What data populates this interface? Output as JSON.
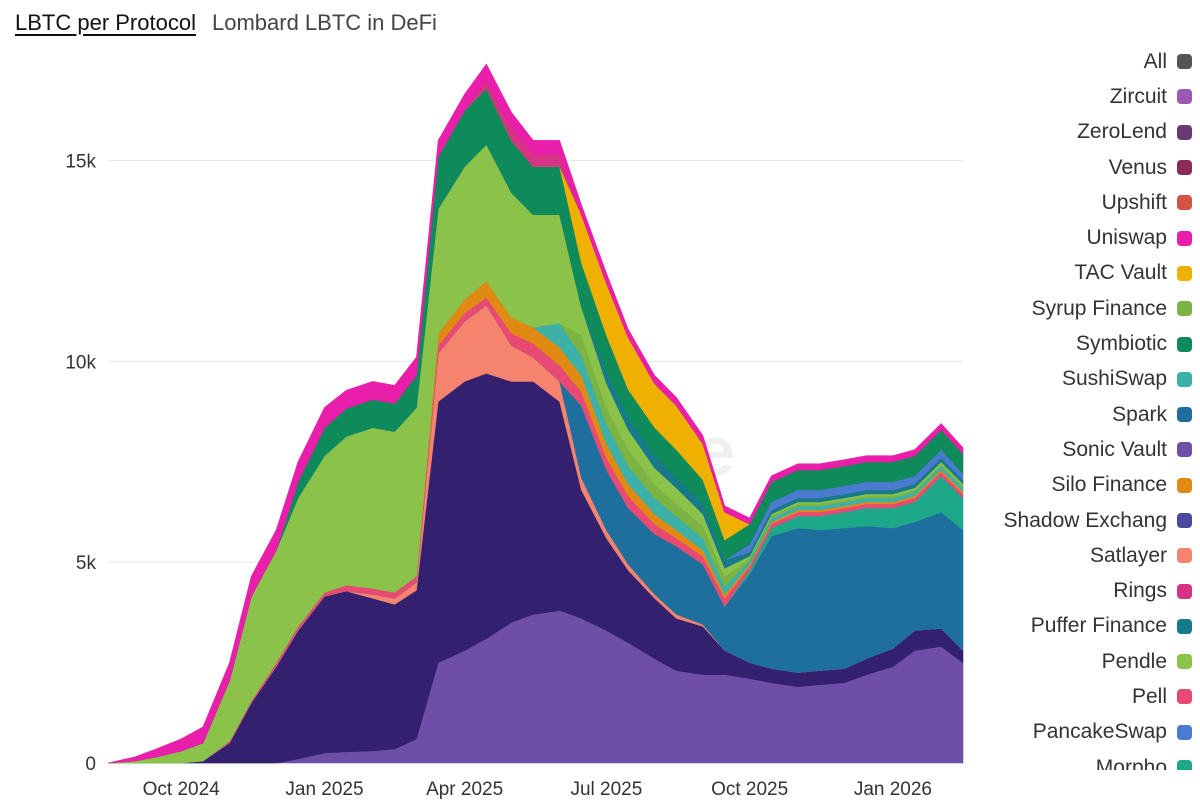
{
  "header": {
    "title": "LBTC per Protocol",
    "subtitle": "Lombard LBTC in DeFi"
  },
  "watermark": "Dune",
  "colors": {
    "background": "#ffffff",
    "grid": "#e8e8e8"
  },
  "legend": [
    {
      "label": "All",
      "color": "#555555"
    },
    {
      "label": "Zircuit",
      "color": "#9b59b6"
    },
    {
      "label": "ZeroLend",
      "color": "#6a3b73"
    },
    {
      "label": "Venus",
      "color": "#8a2b5a"
    },
    {
      "label": "Upshift",
      "color": "#d35441"
    },
    {
      "label": "Uniswap",
      "color": "#e91eaa"
    },
    {
      "label": "TAC Vault",
      "color": "#f0b000"
    },
    {
      "label": "Syrup Finance",
      "color": "#7cb342"
    },
    {
      "label": "Symbiotic",
      "color": "#0f8a5a"
    },
    {
      "label": "SushiSwap",
      "color": "#3db0a8"
    },
    {
      "label": "Spark",
      "color": "#1f6f9e"
    },
    {
      "label": "Sonic Vault",
      "color": "#6e4ea6"
    },
    {
      "label": "Silo Finance",
      "color": "#e08a14"
    },
    {
      "label": "Shadow Exchang",
      "color": "#4b4aa0"
    },
    {
      "label": "Satlayer",
      "color": "#f5836d"
    },
    {
      "label": "Rings",
      "color": "#d63384"
    },
    {
      "label": "Puffer Finance",
      "color": "#177a8a"
    },
    {
      "label": "Pendle",
      "color": "#8bc34a"
    },
    {
      "label": "Pell",
      "color": "#e84a74"
    },
    {
      "label": "PancakeSwap",
      "color": "#4a7bd0"
    },
    {
      "label": "Morpho",
      "color": "#1ea88a"
    }
  ],
  "chart_data": {
    "type": "area",
    "stacked": true,
    "title": "LBTC per Protocol",
    "subtitle": "Lombard LBTC in DeFi",
    "xlabel": "",
    "ylabel": "",
    "ylim": [
      0,
      18000
    ],
    "yticks": [
      0,
      5000,
      10000,
      15000
    ],
    "ytick_labels": [
      "0",
      "5k",
      "10k",
      "15k"
    ],
    "xticks": [
      "2024-10",
      "2025-01",
      "2025-04",
      "2025-07",
      "2025-10",
      "2026-01"
    ],
    "xtick_labels": [
      "Oct 2024",
      "Jan 2025",
      "Apr 2025",
      "Jul 2025",
      "Oct 2025",
      "Jan 2026"
    ],
    "x": [
      "2024-08-15",
      "2024-09-01",
      "2024-09-15",
      "2024-10-01",
      "2024-10-15",
      "2024-11-01",
      "2024-11-15",
      "2024-12-01",
      "2024-12-15",
      "2025-01-01",
      "2025-01-15",
      "2025-02-01",
      "2025-02-15",
      "2025-03-01",
      "2025-03-15",
      "2025-04-01",
      "2025-04-15",
      "2025-05-01",
      "2025-05-15",
      "2025-06-01",
      "2025-06-15",
      "2025-07-01",
      "2025-07-15",
      "2025-08-01",
      "2025-08-15",
      "2025-09-01",
      "2025-09-15",
      "2025-10-01",
      "2025-10-15",
      "2025-11-01",
      "2025-11-15",
      "2025-12-01",
      "2025-12-15",
      "2026-01-01",
      "2026-01-15",
      "2026-02-01",
      "2026-02-15"
    ],
    "series": [
      {
        "name": "Sonic Vault",
        "color": "#6e4ea6",
        "values": [
          0,
          0,
          0,
          0,
          0,
          0,
          0,
          0,
          100,
          250,
          280,
          300,
          350,
          600,
          2500,
          2800,
          3100,
          3500,
          3700,
          3800,
          3600,
          3300,
          3000,
          2600,
          2300,
          2200,
          2200,
          2100,
          2000,
          1900,
          1950,
          2000,
          2200,
          2400,
          2800,
          2900,
          2500
        ]
      },
      {
        "name": "Shadow Exchang",
        "color": "#33206e",
        "values": [
          0,
          0,
          0,
          0,
          50,
          500,
          1500,
          2400,
          3200,
          3900,
          4000,
          3800,
          3600,
          3700,
          6500,
          6700,
          6600,
          6000,
          5800,
          5200,
          3200,
          2300,
          1800,
          1500,
          1300,
          1200,
          600,
          400,
          350,
          350,
          350,
          350,
          400,
          450,
          500,
          450,
          300
        ]
      },
      {
        "name": "Satlayer",
        "color": "#f5836d",
        "values": [
          0,
          0,
          0,
          0,
          0,
          0,
          0,
          0,
          0,
          0,
          0,
          100,
          150,
          200,
          1200,
          1500,
          1700,
          900,
          600,
          500,
          300,
          200,
          150,
          100,
          100,
          50,
          0,
          0,
          0,
          0,
          0,
          0,
          0,
          0,
          0,
          0,
          0
        ]
      },
      {
        "name": "Spark",
        "color": "#1f6f9e",
        "values": [
          0,
          0,
          0,
          0,
          0,
          0,
          0,
          0,
          0,
          0,
          0,
          0,
          0,
          0,
          0,
          0,
          0,
          0,
          0,
          0,
          1800,
          1500,
          1400,
          1500,
          1700,
          1500,
          1100,
          2200,
          3300,
          3600,
          3500,
          3500,
          3300,
          3000,
          2700,
          2900,
          3000
        ]
      },
      {
        "name": "Morpho",
        "color": "#1ea88a",
        "values": [
          0,
          0,
          0,
          0,
          0,
          0,
          0,
          0,
          0,
          0,
          0,
          0,
          0,
          0,
          0,
          0,
          0,
          0,
          0,
          0,
          0,
          0,
          0,
          0,
          0,
          0,
          0,
          100,
          200,
          300,
          350,
          400,
          450,
          500,
          500,
          900,
          800
        ]
      },
      {
        "name": "Pell",
        "color": "#e84a74",
        "values": [
          0,
          0,
          0,
          0,
          0,
          50,
          50,
          100,
          100,
          100,
          150,
          150,
          150,
          150,
          200,
          200,
          200,
          300,
          350,
          400,
          350,
          300,
          300,
          250,
          200,
          200,
          200,
          100,
          100,
          100,
          100,
          100,
          100,
          100,
          100,
          100,
          100
        ]
      },
      {
        "name": "Silo Finance",
        "color": "#e08a14",
        "values": [
          0,
          0,
          0,
          0,
          0,
          0,
          0,
          0,
          0,
          0,
          0,
          0,
          0,
          0,
          300,
          350,
          400,
          400,
          400,
          450,
          400,
          350,
          300,
          250,
          200,
          150,
          100,
          50,
          50,
          50,
          50,
          50,
          50,
          50,
          50,
          50,
          50
        ]
      },
      {
        "name": "SushiSwap",
        "color": "#3db0a8",
        "values": [
          0,
          0,
          0,
          0,
          0,
          0,
          0,
          0,
          0,
          0,
          0,
          0,
          0,
          0,
          0,
          0,
          0,
          0,
          0,
          600,
          500,
          500,
          450,
          400,
          350,
          300,
          200,
          100,
          100,
          100,
          100,
          100,
          100,
          100,
          100,
          100,
          100
        ]
      },
      {
        "name": "Syrup Finance",
        "color": "#7cb342",
        "values": [
          0,
          0,
          0,
          0,
          0,
          0,
          0,
          0,
          0,
          0,
          0,
          0,
          0,
          0,
          0,
          0,
          0,
          0,
          0,
          0,
          500,
          400,
          400,
          350,
          300,
          300,
          250,
          50,
          50,
          50,
          50,
          50,
          50,
          50,
          50,
          50,
          50
        ]
      },
      {
        "name": "Pendle",
        "color": "#8bc34a",
        "values": [
          0,
          50,
          150,
          300,
          450,
          1500,
          2600,
          2800,
          3200,
          3400,
          3700,
          4000,
          4000,
          4200,
          3100,
          3300,
          3400,
          3100,
          2800,
          2700,
          700,
          600,
          500,
          400,
          400,
          300,
          200,
          50,
          50,
          50,
          50,
          50,
          50,
          50,
          50,
          50,
          50
        ]
      },
      {
        "name": "Puffer Finance",
        "color": "#177a8a",
        "values": [
          0,
          0,
          0,
          0,
          0,
          0,
          0,
          0,
          0,
          0,
          0,
          0,
          0,
          0,
          0,
          0,
          0,
          0,
          0,
          0,
          0,
          300,
          300,
          300,
          250,
          250,
          200,
          100,
          100,
          100,
          100,
          100,
          100,
          100,
          100,
          100,
          100
        ]
      },
      {
        "name": "PancakeSwap",
        "color": "#4a7bd0",
        "values": [
          0,
          0,
          0,
          0,
          0,
          0,
          0,
          0,
          0,
          0,
          0,
          0,
          0,
          0,
          0,
          0,
          0,
          0,
          0,
          0,
          0,
          0,
          0,
          0,
          0,
          0,
          0,
          200,
          200,
          200,
          200,
          200,
          200,
          200,
          200,
          200,
          150
        ]
      },
      {
        "name": "Symbiotic",
        "color": "#0f8a5a",
        "values": [
          0,
          0,
          0,
          0,
          0,
          0,
          0,
          0,
          400,
          700,
          700,
          700,
          700,
          800,
          1300,
          1400,
          1400,
          1300,
          1200,
          1200,
          1100,
          900,
          700,
          700,
          700,
          600,
          500,
          500,
          500,
          500,
          500,
          500,
          500,
          500,
          500,
          500,
          500
        ]
      },
      {
        "name": "TAC Vault",
        "color": "#f0b000",
        "values": [
          0,
          0,
          0,
          0,
          0,
          0,
          0,
          0,
          0,
          0,
          0,
          0,
          0,
          0,
          0,
          0,
          0,
          0,
          0,
          0,
          1200,
          1300,
          1300,
          1100,
          1100,
          900,
          700,
          0,
          0,
          0,
          0,
          0,
          0,
          0,
          0,
          0,
          0
        ]
      },
      {
        "name": "Rings",
        "color": "#d63384",
        "values": [
          0,
          0,
          0,
          0,
          0,
          0,
          0,
          0,
          0,
          0,
          0,
          0,
          0,
          0,
          0,
          0,
          200,
          300,
          300,
          300,
          0,
          0,
          0,
          0,
          0,
          0,
          0,
          0,
          0,
          0,
          0,
          0,
          0,
          0,
          0,
          0,
          0
        ]
      },
      {
        "name": "Zircuit",
        "color": "#9b59b6",
        "values": [
          0,
          0,
          0,
          0,
          0,
          0,
          0,
          0,
          0,
          0,
          0,
          0,
          0,
          0,
          0,
          0,
          0,
          0,
          0,
          0,
          0,
          0,
          0,
          0,
          0,
          0,
          0,
          0,
          0,
          0,
          0,
          0,
          0,
          0,
          0,
          0,
          0
        ]
      },
      {
        "name": "ZeroLend",
        "color": "#6a3b73",
        "values": [
          0,
          0,
          0,
          0,
          0,
          0,
          0,
          0,
          0,
          0,
          0,
          0,
          0,
          0,
          0,
          0,
          0,
          0,
          0,
          0,
          0,
          0,
          0,
          0,
          0,
          0,
          0,
          0,
          0,
          0,
          0,
          0,
          0,
          0,
          0,
          0,
          0
        ]
      },
      {
        "name": "Upshift",
        "color": "#d35441",
        "values": [
          0,
          0,
          0,
          0,
          0,
          0,
          0,
          0,
          0,
          0,
          0,
          0,
          0,
          0,
          0,
          0,
          0,
          0,
          0,
          0,
          0,
          0,
          0,
          0,
          0,
          0,
          0,
          0,
          0,
          0,
          0,
          0,
          0,
          0,
          0,
          0,
          0
        ]
      },
      {
        "name": "Venus",
        "color": "#8a2b5a",
        "values": [
          0,
          0,
          0,
          0,
          0,
          0,
          0,
          0,
          0,
          0,
          0,
          0,
          0,
          0,
          0,
          0,
          0,
          0,
          0,
          0,
          0,
          0,
          0,
          0,
          0,
          0,
          0,
          0,
          0,
          0,
          0,
          0,
          0,
          0,
          0,
          0,
          0
        ]
      },
      {
        "name": "Uniswap",
        "color": "#e91eaa",
        "values": [
          0,
          100,
          200,
          300,
          400,
          450,
          500,
          500,
          500,
          500,
          450,
          450,
          450,
          450,
          400,
          400,
          400,
          400,
          350,
          350,
          250,
          250,
          200,
          200,
          200,
          200,
          150,
          150,
          150,
          150,
          150,
          150,
          150,
          150,
          150,
          150,
          150
        ]
      }
    ]
  }
}
